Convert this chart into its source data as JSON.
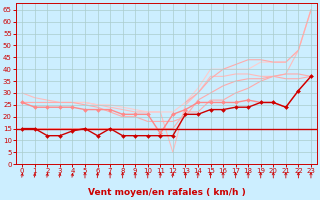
{
  "bg_color": "#cceeff",
  "grid_color": "#aacccc",
  "xlabel": "Vent moyen/en rafales ( km/h )",
  "xlim": [
    -0.5,
    23.5
  ],
  "ylim": [
    0,
    68
  ],
  "yticks": [
    0,
    5,
    10,
    15,
    20,
    25,
    30,
    35,
    40,
    45,
    50,
    55,
    60,
    65
  ],
  "xticks": [
    0,
    1,
    2,
    3,
    4,
    5,
    6,
    7,
    8,
    9,
    10,
    11,
    12,
    13,
    14,
    15,
    16,
    17,
    18,
    19,
    20,
    21,
    22,
    23
  ],
  "line_flat": {
    "y": 15,
    "color": "#cc0000",
    "lw": 1.0
  },
  "line_dark_marker": {
    "x": [
      0,
      1,
      2,
      3,
      4,
      5,
      6,
      7,
      8,
      9,
      10,
      11,
      12,
      13,
      14,
      15,
      16,
      17,
      18,
      19,
      20,
      21,
      22,
      23
    ],
    "y": [
      15,
      15,
      12,
      12,
      14,
      15,
      12,
      15,
      12,
      12,
      12,
      12,
      12,
      21,
      21,
      23,
      23,
      24,
      24,
      26,
      26,
      24,
      31,
      37
    ],
    "color": "#cc0000",
    "lw": 1.0
  },
  "line_pink_marker": {
    "x": [
      0,
      1,
      2,
      3,
      4,
      5,
      6,
      7,
      8,
      9,
      10,
      11,
      12,
      13,
      14,
      15,
      16,
      17,
      18,
      19,
      20,
      21,
      22,
      23
    ],
    "y": [
      26,
      24,
      24,
      24,
      24,
      23,
      23,
      23,
      21,
      21,
      21,
      13,
      21,
      23,
      26,
      26,
      26,
      26,
      27,
      26,
      26,
      24,
      31,
      37
    ],
    "color": "#ff8888",
    "lw": 1.0
  },
  "line_env1": {
    "x": [
      0,
      1,
      2,
      3,
      4,
      5,
      6,
      7,
      8,
      9,
      10,
      11,
      12,
      13,
      14,
      15,
      16,
      17,
      18,
      19,
      20,
      21,
      22,
      23
    ],
    "y": [
      15,
      15,
      15,
      15,
      15,
      15,
      15,
      15,
      15,
      15,
      15,
      15,
      15,
      22,
      22,
      27,
      27,
      30,
      32,
      35,
      37,
      38,
      38,
      37
    ],
    "color": "#ffaaaa",
    "lw": 0.8
  },
  "line_env2": {
    "x": [
      0,
      3,
      4,
      5,
      6,
      7,
      8,
      9,
      10,
      11,
      12,
      13,
      14,
      15,
      16,
      17,
      18,
      19,
      20,
      21,
      22,
      23
    ],
    "y": [
      26,
      26,
      26,
      25,
      24,
      22,
      20,
      20,
      18,
      18,
      18,
      20,
      27,
      30,
      33,
      35,
      36,
      36,
      37,
      36,
      36,
      37
    ],
    "color": "#ffaaaa",
    "lw": 0.8
  },
  "line_env3": {
    "x": [
      0,
      1,
      2,
      3,
      4,
      5,
      6,
      7,
      8,
      9,
      10,
      11,
      12,
      13,
      14,
      15,
      16,
      17,
      18,
      19,
      20,
      21,
      22,
      23
    ],
    "y": [
      30,
      28,
      27,
      26,
      26,
      26,
      25,
      24,
      23,
      22,
      22,
      22,
      5,
      25,
      30,
      37,
      37,
      38,
      38,
      37,
      37,
      38,
      48,
      65
    ],
    "color": "#ffbbbb",
    "lw": 0.8
  },
  "line_env4": {
    "x": [
      0,
      1,
      2,
      3,
      4,
      5,
      6,
      7,
      8,
      9,
      10,
      11,
      12,
      13,
      14,
      15,
      16,
      17,
      18,
      19,
      20,
      21,
      22,
      23
    ],
    "y": [
      26,
      26,
      26,
      26,
      26,
      26,
      25,
      25,
      24,
      23,
      22,
      22,
      22,
      26,
      32,
      40,
      40,
      40,
      40,
      43,
      43,
      43,
      48,
      65
    ],
    "color": "#ffcccc",
    "lw": 0.8
  },
  "line_env5": {
    "x": [
      13,
      14,
      15,
      16,
      17,
      18,
      19,
      20,
      21,
      22,
      23
    ],
    "y": [
      26,
      30,
      36,
      40,
      42,
      44,
      44,
      43,
      43,
      48,
      65
    ],
    "color": "#ffaaaa",
    "lw": 0.8
  },
  "tick_color": "#cc0000",
  "xlabel_color": "#cc0000",
  "arrow_color": "#cc0000",
  "arrow_angles": [
    60,
    60,
    60,
    60,
    60,
    90,
    75,
    90,
    90,
    90,
    90,
    75,
    60,
    90,
    75,
    90,
    90,
    90,
    90,
    90,
    90,
    90,
    90,
    90
  ]
}
